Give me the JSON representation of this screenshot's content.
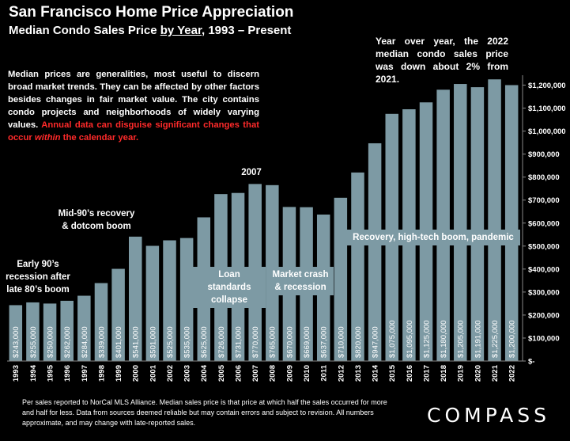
{
  "header": {
    "title": "San Francisco Home Price Appreciation",
    "subtitle_pre": "Median Condo Sales Price ",
    "subtitle_u": "by Year",
    "subtitle_post": ", 1993 – Present"
  },
  "description": {
    "main": "Median prices are generalities, most useful to discern broad market trends. They can be affected by other factors besides changes in fair market value. The city contains condo projects and neighborhoods of widely varying values. ",
    "red_pre": "Annual data can disguise significant changes that occur ",
    "red_em": "within",
    "red_post": " the calendar year."
  },
  "note": "Year over year, the 2022 median condo sales price was down about 2% from 2021.",
  "annotations": {
    "early90s": "Early 90’s recession after late 80’s boom",
    "mid90s": "Mid-90’s recovery & dotcom boom",
    "y2007": "2007",
    "loan": "Loan standards collapse",
    "crash": "Market crash & recession",
    "recovery": "Recovery, high-tech boom, pandemic"
  },
  "footer": "Per sales reported to NorCal MLS Alliance. Median sales price is that price at which half the sales occurred for more and half for less. Data from sources deemed reliable but may contain errors and subject to revision. All numbers approximate, and may change with late-reported sales.",
  "logo": "COMPASS",
  "chart_data": {
    "type": "bar",
    "categories": [
      "1993",
      "1994",
      "1995",
      "1996",
      "1997",
      "1998",
      "1999",
      "2000",
      "2001",
      "2002",
      "2003",
      "2004",
      "2005",
      "2006",
      "2007",
      "2008",
      "2009",
      "2010",
      "2011",
      "2012",
      "2013",
      "2014",
      "2015",
      "2016",
      "2017",
      "2018",
      "2019",
      "2020",
      "2021",
      "2022"
    ],
    "values": [
      243000,
      255000,
      250000,
      262000,
      284000,
      339000,
      401000,
      541000,
      501000,
      525000,
      535000,
      625000,
      726000,
      731000,
      770000,
      765000,
      670000,
      669000,
      637000,
      710000,
      820000,
      947000,
      1075000,
      1095000,
      1125000,
      1180000,
      1205000,
      1191000,
      1225000,
      1200000
    ],
    "labels": [
      "$243,000",
      "$255,000",
      "$250,000",
      "$262,000",
      "$284,000",
      "$339,000",
      "$401,000",
      "$541,000",
      "$501,000",
      "$525,000",
      "$535,000",
      "$625,000",
      "$726,000",
      "$731,000",
      "$770,000",
      "$765,000",
      "$670,000",
      "$669,000",
      "$637,000",
      "$710,000",
      "$820,000",
      "$947,000",
      "$1,075,000",
      "$1,095,000",
      "$1,125,000",
      "$1,180,000",
      "$1,205,000",
      "$1,191,000",
      "$1,225,000",
      "$1,200,000"
    ],
    "ylim": [
      0,
      1200000
    ],
    "yticks": [
      0,
      100000,
      200000,
      300000,
      400000,
      500000,
      600000,
      700000,
      800000,
      900000,
      1000000,
      1100000,
      1200000
    ],
    "ytick_labels": [
      "$-",
      "$100,000",
      "$200,000",
      "$300,000",
      "$400,000",
      "$500,000",
      "$600,000",
      "$700,000",
      "$800,000",
      "$900,000",
      "$1,000,000",
      "$1,100,000",
      "$1,200,000"
    ],
    "y_axis_side": "right",
    "grid": false,
    "bar_color": "#7d9aa4"
  }
}
